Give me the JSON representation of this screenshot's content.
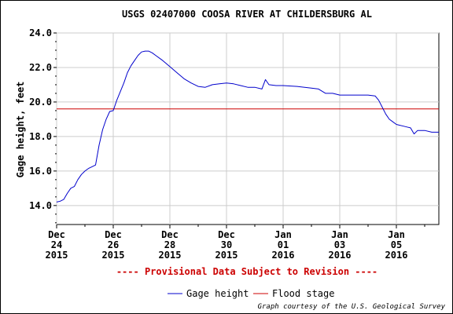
{
  "chart_data": {
    "type": "line",
    "title": "USGS 02407000 COOSA RIVER AT CHILDERSBURG AL",
    "ylabel": "Gage height, feet",
    "xlabel": "",
    "ylim": [
      12.9,
      24.0
    ],
    "xlim": [
      "2015-12-24T00:00",
      "2016-01-06T12:00"
    ],
    "yticks": [
      "14.0",
      "16.0",
      "18.0",
      "20.0",
      "22.0",
      "24.0"
    ],
    "ytick_values": [
      14,
      16,
      18,
      20,
      22,
      24
    ],
    "xticks": [
      {
        "date": "2015-12-24",
        "line1": "Dec",
        "line2": "24",
        "line3": "2015"
      },
      {
        "date": "2015-12-26",
        "line1": "Dec",
        "line2": "26",
        "line3": "2015"
      },
      {
        "date": "2015-12-28",
        "line1": "Dec",
        "line2": "28",
        "line3": "2015"
      },
      {
        "date": "2015-12-30",
        "line1": "Dec",
        "line2": "30",
        "line3": "2015"
      },
      {
        "date": "2016-01-01",
        "line1": "Jan",
        "line2": "01",
        "line3": "2016"
      },
      {
        "date": "2016-01-03",
        "line1": "Jan",
        "line2": "03",
        "line3": "2016"
      },
      {
        "date": "2016-01-05",
        "line1": "Jan",
        "line2": "05",
        "line3": "2016"
      }
    ],
    "grid": true,
    "legend_position": "bottom-center",
    "series": [
      {
        "name": "Gage height",
        "color": "#0000cc",
        "points": [
          [
            "2015-12-24T00:00",
            14.2
          ],
          [
            "2015-12-24T03:00",
            14.25
          ],
          [
            "2015-12-24T06:00",
            14.35
          ],
          [
            "2015-12-24T09:00",
            14.7
          ],
          [
            "2015-12-24T12:00",
            15.0
          ],
          [
            "2015-12-24T15:00",
            15.1
          ],
          [
            "2015-12-24T18:00",
            15.5
          ],
          [
            "2015-12-24T21:00",
            15.8
          ],
          [
            "2015-12-25T00:00",
            16.0
          ],
          [
            "2015-12-25T03:00",
            16.15
          ],
          [
            "2015-12-25T06:00",
            16.25
          ],
          [
            "2015-12-25T09:00",
            16.35
          ],
          [
            "2015-12-25T12:00",
            17.5
          ],
          [
            "2015-12-25T15:00",
            18.4
          ],
          [
            "2015-12-25T18:00",
            19.0
          ],
          [
            "2015-12-25T21:00",
            19.45
          ],
          [
            "2015-12-26T00:00",
            19.5
          ],
          [
            "2015-12-26T03:00",
            20.1
          ],
          [
            "2015-12-26T06:00",
            20.6
          ],
          [
            "2015-12-26T09:00",
            21.1
          ],
          [
            "2015-12-26T12:00",
            21.7
          ],
          [
            "2015-12-26T15:00",
            22.1
          ],
          [
            "2015-12-26T18:00",
            22.4
          ],
          [
            "2015-12-26T21:00",
            22.7
          ],
          [
            "2015-12-27T00:00",
            22.9
          ],
          [
            "2015-12-27T03:00",
            22.95
          ],
          [
            "2015-12-27T06:00",
            22.95
          ],
          [
            "2015-12-27T09:00",
            22.85
          ],
          [
            "2015-12-27T12:00",
            22.7
          ],
          [
            "2015-12-27T18:00",
            22.4
          ],
          [
            "2015-12-28T00:00",
            22.05
          ],
          [
            "2015-12-28T06:00",
            21.7
          ],
          [
            "2015-12-28T12:00",
            21.35
          ],
          [
            "2015-12-28T18:00",
            21.1
          ],
          [
            "2015-12-29T00:00",
            20.9
          ],
          [
            "2015-12-29T06:00",
            20.85
          ],
          [
            "2015-12-29T12:00",
            21.0
          ],
          [
            "2015-12-29T18:00",
            21.05
          ],
          [
            "2015-12-30T00:00",
            21.1
          ],
          [
            "2015-12-30T06:00",
            21.05
          ],
          [
            "2015-12-30T12:00",
            20.95
          ],
          [
            "2015-12-30T18:00",
            20.85
          ],
          [
            "2015-12-31T00:00",
            20.85
          ],
          [
            "2015-12-31T06:00",
            20.75
          ],
          [
            "2015-12-31T09:00",
            21.3
          ],
          [
            "2015-12-31T12:00",
            21.0
          ],
          [
            "2015-12-31T18:00",
            20.95
          ],
          [
            "2016-01-01T00:00",
            20.95
          ],
          [
            "2016-01-01T12:00",
            20.9
          ],
          [
            "2016-01-02T00:00",
            20.8
          ],
          [
            "2016-01-02T06:00",
            20.75
          ],
          [
            "2016-01-02T12:00",
            20.5
          ],
          [
            "2016-01-02T18:00",
            20.5
          ],
          [
            "2016-01-03T00:00",
            20.4
          ],
          [
            "2016-01-03T12:00",
            20.4
          ],
          [
            "2016-01-04T00:00",
            20.4
          ],
          [
            "2016-01-04T06:00",
            20.35
          ],
          [
            "2016-01-04T09:00",
            20.1
          ],
          [
            "2016-01-04T12:00",
            19.7
          ],
          [
            "2016-01-04T15:00",
            19.3
          ],
          [
            "2016-01-04T18:00",
            19.0
          ],
          [
            "2016-01-04T21:00",
            18.85
          ],
          [
            "2016-01-05T00:00",
            18.7
          ],
          [
            "2016-01-05T06:00",
            18.6
          ],
          [
            "2016-01-05T09:00",
            18.55
          ],
          [
            "2016-01-05T12:00",
            18.5
          ],
          [
            "2016-01-05T15:00",
            18.15
          ],
          [
            "2016-01-05T18:00",
            18.35
          ],
          [
            "2016-01-06T00:00",
            18.35
          ],
          [
            "2016-01-06T06:00",
            18.25
          ],
          [
            "2016-01-06T12:00",
            18.25
          ]
        ]
      },
      {
        "name": "Flood stage",
        "color": "#cc0000",
        "constant": 19.6
      }
    ],
    "notice": "---- Provisional Data Subject to Revision ----",
    "credit": "Graph courtesy of the U.S. Geological Survey"
  }
}
